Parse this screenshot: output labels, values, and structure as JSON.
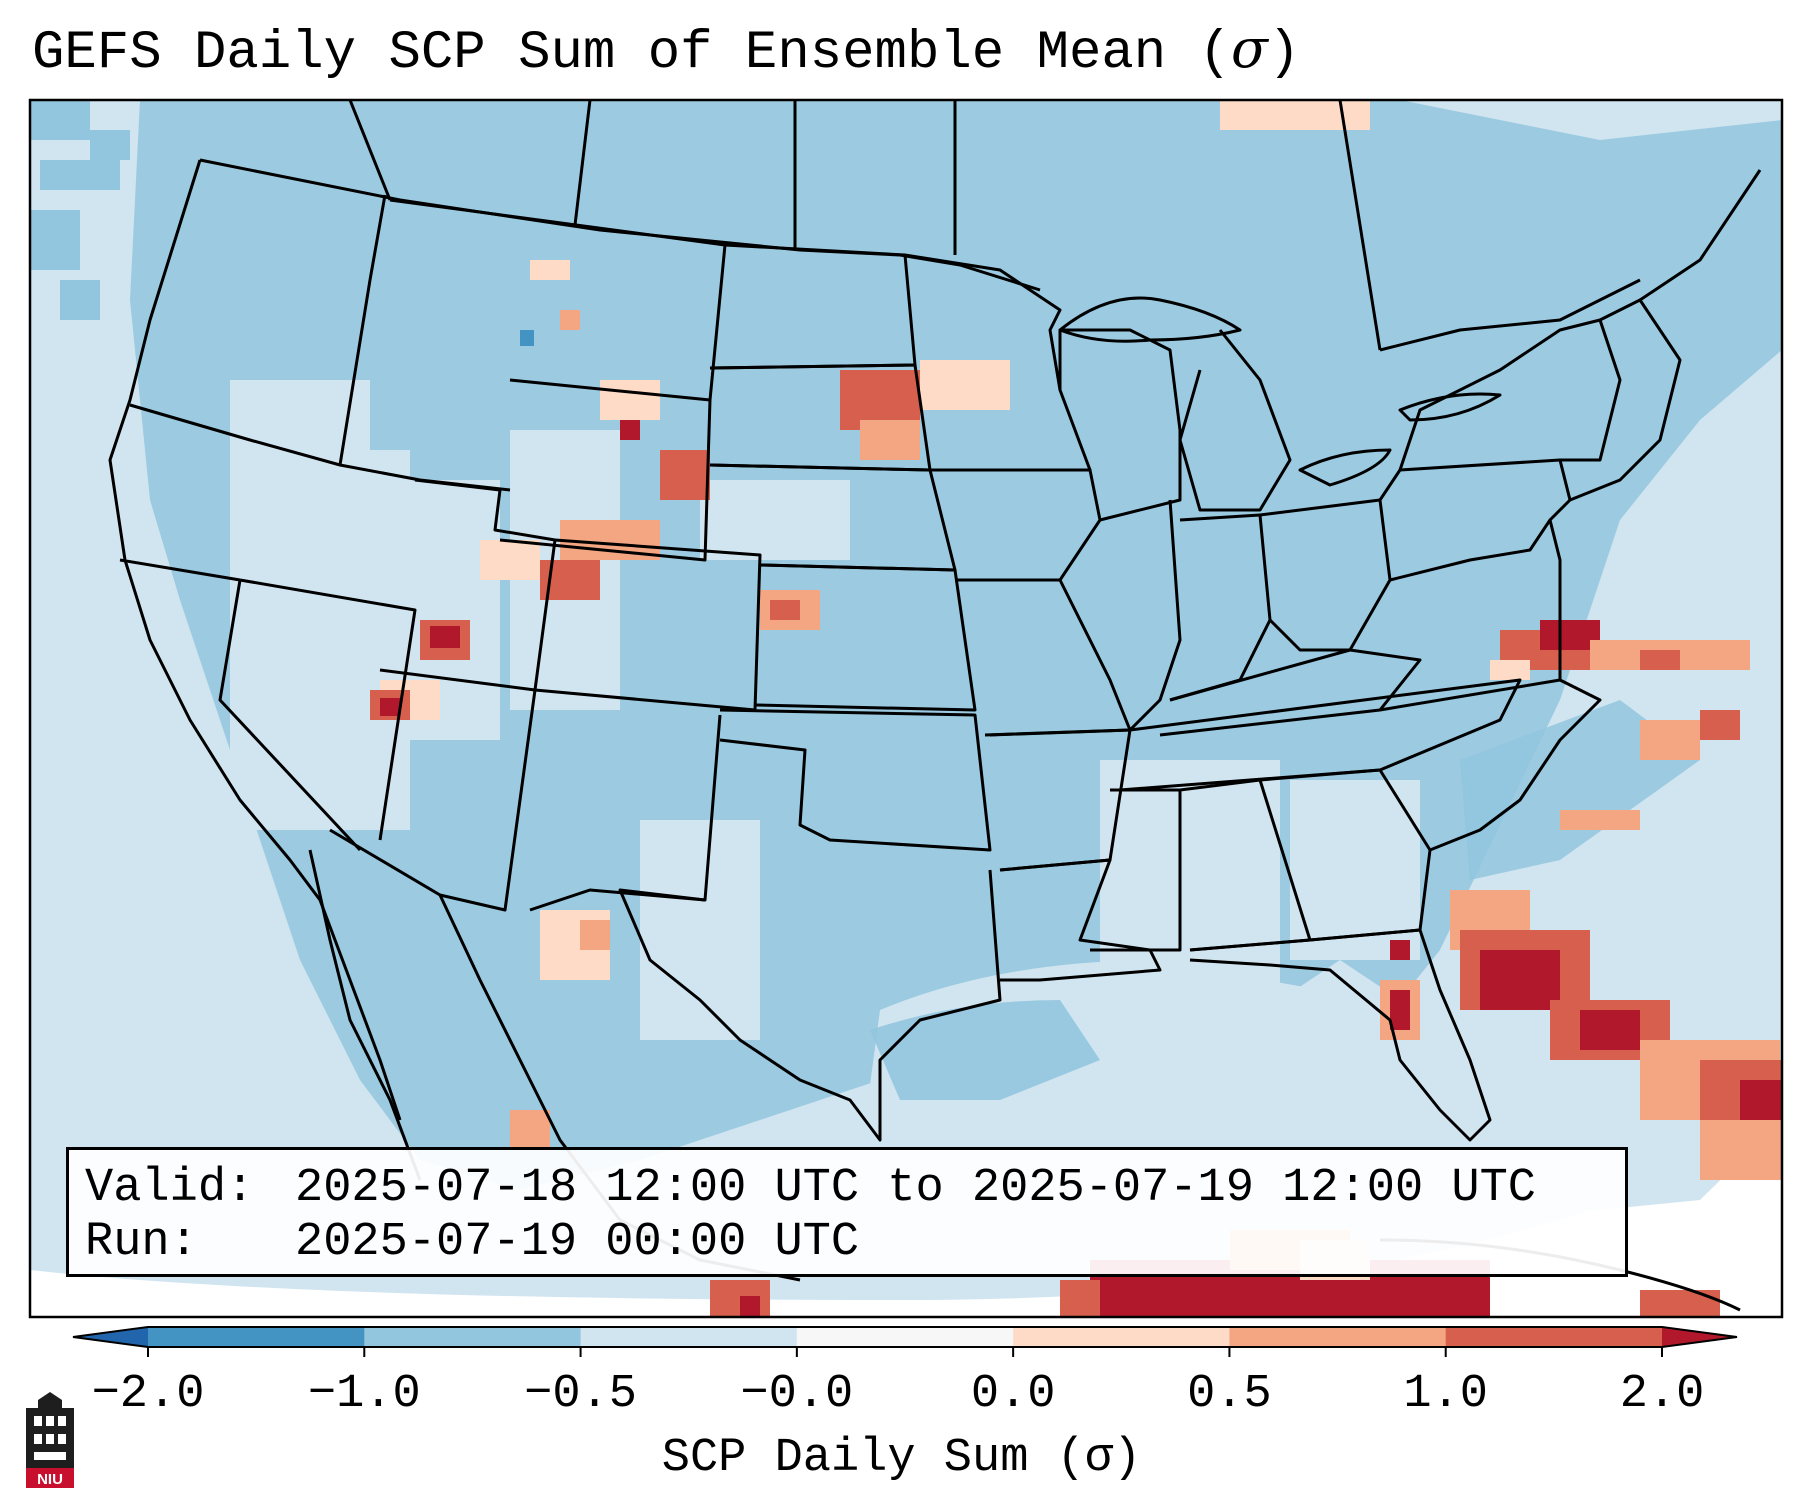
{
  "title": {
    "text": "GEFS Daily SCP Sum of Ensemble Mean (",
    "symbol": "σ",
    "close": ")"
  },
  "info": {
    "valid_label": "Valid:",
    "valid_value": "2025-07-18 12:00 UTC to 2025-07-19 12:00 UTC",
    "run_label": "Run:",
    "run_value": "2025-07-19 00:00 UTC"
  },
  "colorbar": {
    "label": "SCP Daily Sum (σ)",
    "ticks": [
      "−2.0",
      "−1.0",
      "−0.5",
      "−0.0",
      "0.0",
      "0.5",
      "1.0",
      "2.0"
    ],
    "bins": [
      {
        "range": "< -2.0",
        "color": "#2166ac"
      },
      {
        "range": "-2.0 to -1.0",
        "color": "#4393c3"
      },
      {
        "range": "-1.0 to -0.5",
        "color": "#92c5de"
      },
      {
        "range": "-0.5 to -0.0",
        "color": "#d1e5f0"
      },
      {
        "range": "-0.0 to 0.0",
        "color": "#f7f7f7"
      },
      {
        "range": "0.0 to 0.5",
        "color": "#fddbc7"
      },
      {
        "range": "0.5 to 1.0",
        "color": "#f4a582"
      },
      {
        "range": "1.0 to 2.0",
        "color": "#d6604d"
      },
      {
        "range": "> 2.0",
        "color": "#b2182b"
      }
    ]
  },
  "logo": {
    "text": "NIU",
    "colors": {
      "tower": "#1e1e1e",
      "base": "#c8102e"
    }
  },
  "map": {
    "background_color": "#d1e5f0",
    "land_color": "#92c5de",
    "outline_color": "#000000",
    "highlights": [
      {
        "region": "western Montana / Idaho",
        "level": "0.0 to 0.5"
      },
      {
        "region": "central Wyoming",
        "level": "1.0 to 2.0"
      },
      {
        "region": "northern Utah",
        "level": "> 2.0"
      },
      {
        "region": "southern Nevada / Utah border",
        "level": "1.0 to 2.0"
      },
      {
        "region": "northeastern South Dakota",
        "level": "0.5 to 1.0"
      },
      {
        "region": "western Kansas",
        "level": "0.5 to 1.0"
      },
      {
        "region": "Chesapeake Bay / Virginia coast",
        "level": "> 2.0"
      },
      {
        "region": "western Atlantic off Carolinas",
        "level": "1.0 to 2.0"
      },
      {
        "region": "Atlantic east of Florida",
        "level": "> 2.0"
      },
      {
        "region": "Florida Gulf coast",
        "level": "> 2.0"
      },
      {
        "region": "Cuba / Caribbean",
        "level": "> 2.0"
      },
      {
        "region": "southeastern New Mexico / west Texas",
        "level": "0.0 to 0.5"
      }
    ]
  }
}
